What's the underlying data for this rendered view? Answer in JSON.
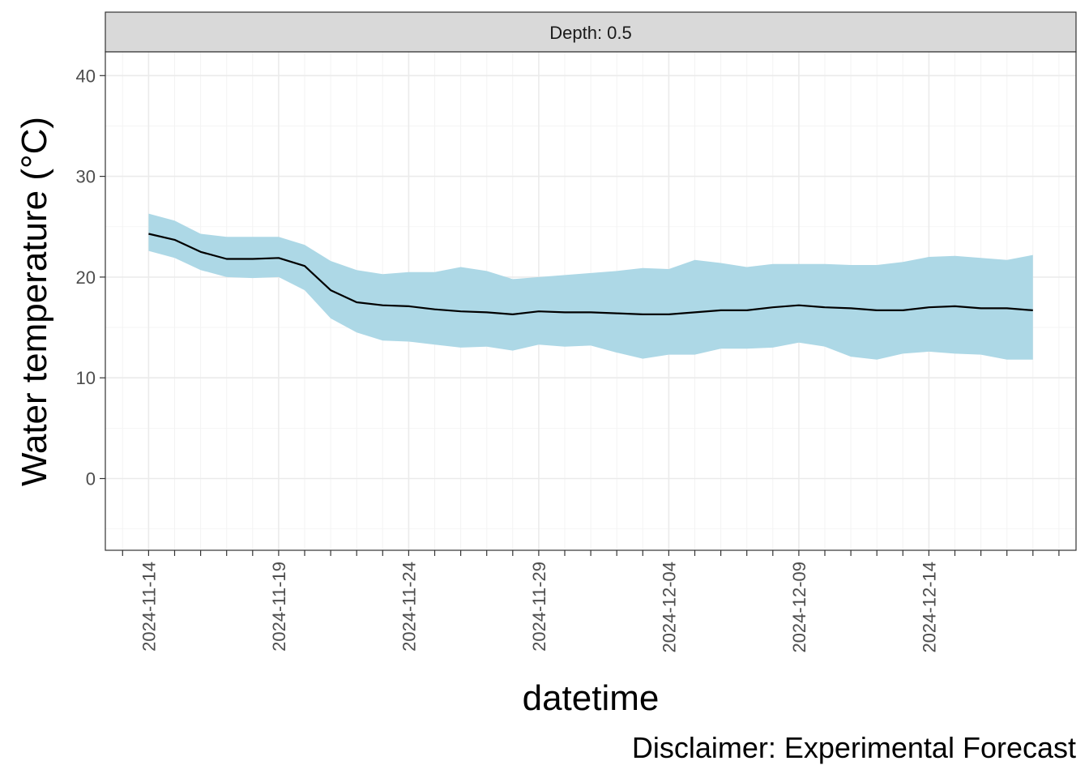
{
  "chart_data": {
    "type": "line",
    "facet_label": "Depth: 0.5",
    "xlabel": "datetime",
    "ylabel": "Water temperature (°C)",
    "caption": "Disclaimer: Experimental Forecast",
    "ylim": [
      -7,
      42.5
    ],
    "y_ticks": [
      0,
      10,
      20,
      30,
      40
    ],
    "x_start": "2024-11-13",
    "x_tick_labels": [
      "2024-11-14",
      "2024-11-19",
      "2024-11-24",
      "2024-11-29",
      "2024-12-04",
      "2024-12-09",
      "2024-12-14"
    ],
    "grid": true,
    "colors": {
      "ribbon": "#add8e6",
      "line": "#000000",
      "strip": "#d9d9d9"
    },
    "series": [
      {
        "x": [
          "2024-11-14",
          "2024-11-15",
          "2024-11-16",
          "2024-11-17",
          "2024-11-18",
          "2024-11-19",
          "2024-11-20",
          "2024-11-21",
          "2024-11-22",
          "2024-11-23",
          "2024-11-24",
          "2024-11-25",
          "2024-11-26",
          "2024-11-27",
          "2024-11-28",
          "2024-11-29",
          "2024-11-30",
          "2024-12-01",
          "2024-12-02",
          "2024-12-03",
          "2024-12-04",
          "2024-12-05",
          "2024-12-06",
          "2024-12-07",
          "2024-12-08",
          "2024-12-09",
          "2024-12-10",
          "2024-12-11",
          "2024-12-12",
          "2024-12-13",
          "2024-12-14",
          "2024-12-15",
          "2024-12-16",
          "2024-12-17",
          "2024-12-18"
        ],
        "mean": [
          24.3,
          23.7,
          22.5,
          21.8,
          21.8,
          21.9,
          21.1,
          18.7,
          17.5,
          17.2,
          17.1,
          16.8,
          16.6,
          16.5,
          16.3,
          16.6,
          16.5,
          16.5,
          16.4,
          16.3,
          16.3,
          16.5,
          16.7,
          16.7,
          17.0,
          17.2,
          17.0,
          16.9,
          16.7,
          16.7,
          17.0,
          17.1,
          16.9,
          16.9,
          16.7
        ],
        "upper": [
          26.3,
          25.6,
          24.3,
          24.0,
          24.0,
          24.0,
          23.2,
          21.6,
          20.7,
          20.3,
          20.5,
          20.5,
          21.0,
          20.6,
          19.8,
          20.0,
          20.2,
          20.4,
          20.6,
          20.9,
          20.8,
          21.7,
          21.4,
          21.0,
          21.3,
          21.3,
          21.3,
          21.2,
          21.2,
          21.5,
          22.0,
          22.1,
          21.9,
          21.7,
          22.2
        ],
        "lower": [
          22.6,
          21.9,
          20.7,
          20.0,
          19.9,
          20.0,
          18.7,
          15.9,
          14.5,
          13.7,
          13.6,
          13.3,
          13.0,
          13.1,
          12.7,
          13.3,
          13.1,
          13.2,
          12.5,
          11.9,
          12.3,
          12.3,
          12.9,
          12.9,
          13.0,
          13.5,
          13.1,
          12.1,
          11.8,
          12.4,
          12.6,
          12.4,
          12.3,
          11.8,
          11.8
        ]
      }
    ]
  }
}
